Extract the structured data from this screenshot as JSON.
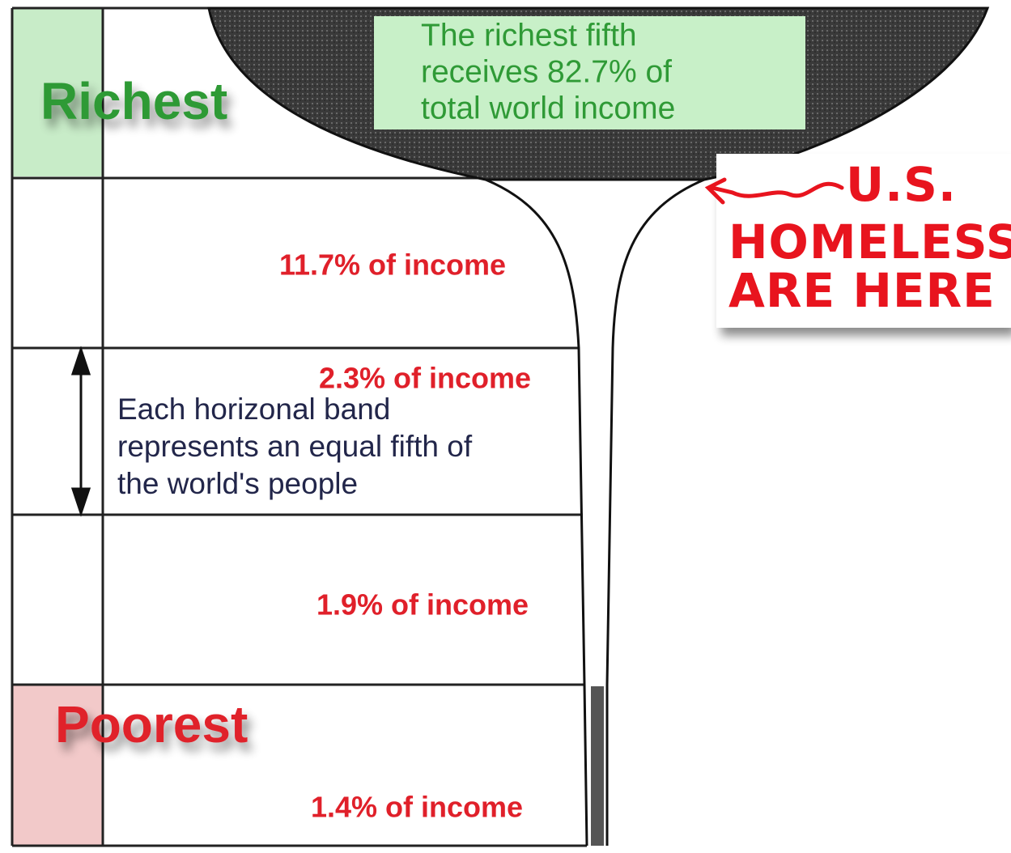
{
  "labels": {
    "richest": "Richest",
    "poorest": "Poorest"
  },
  "callout": {
    "lines": [
      "The richest fifth",
      "receives 82.7% of",
      "total world income"
    ]
  },
  "bands": [
    "11.7% of income",
    "2.3% of income",
    "1.9% of income",
    "1.4% of income"
  ],
  "note": {
    "lines": [
      "Each horizonal band",
      "represents an equal fifth of",
      "the world's people"
    ]
  },
  "annotation": {
    "lines": [
      "U.S.",
      "HOMELESS",
      "ARE HERE"
    ]
  }
}
